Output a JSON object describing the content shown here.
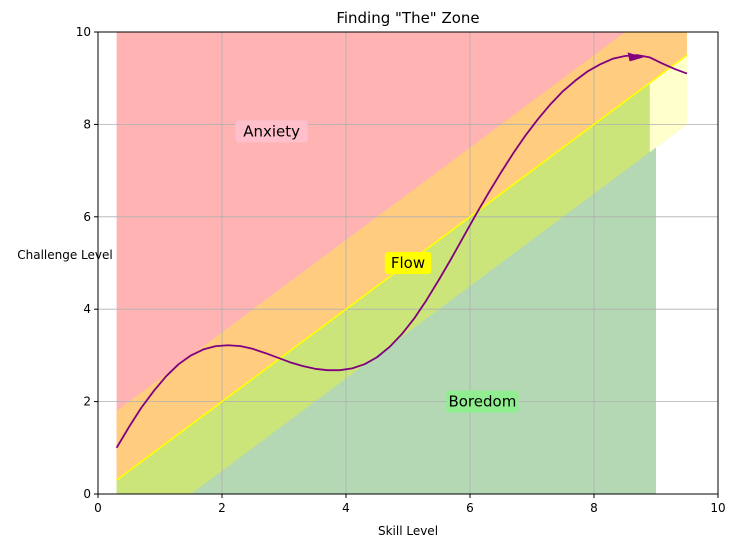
{
  "chart_data": {
    "type": "area",
    "title": "Finding \"The\" Zone",
    "xlabel": "Skill Level",
    "ylabel": "Challenge Level",
    "xlim": [
      0,
      10
    ],
    "ylim": [
      0,
      10
    ],
    "xticks": [
      0,
      2,
      4,
      6,
      8,
      10
    ],
    "yticks": [
      0,
      2,
      4,
      6,
      8,
      10
    ],
    "grid": true,
    "regions": [
      {
        "label": "Anxiety",
        "color": "#ffb3b3",
        "x_range": [
          0.3,
          9.0
        ],
        "y_range": [
          0,
          10
        ]
      },
      {
        "label": "Boredom",
        "color": "#b3d8b3",
        "x_range": [
          0.3,
          9.0
        ],
        "y_range": [
          0,
          10
        ]
      }
    ],
    "bands": [
      {
        "color": "#ffcc80",
        "lower": [
          [
            0.3,
            0.3
          ],
          [
            9.5,
            9.5
          ]
        ],
        "upper": [
          [
            0.3,
            1.8
          ],
          [
            9.5,
            11.0
          ]
        ]
      },
      {
        "color": "#cce57a",
        "lower": [
          [
            0.3,
            -1.2
          ],
          [
            9.5,
            8.0
          ]
        ],
        "upper": [
          [
            0.3,
            0.3
          ],
          [
            9.5,
            9.5
          ]
        ]
      },
      {
        "color": "#ffffcc",
        "lower": [
          [
            8.9,
            7.4
          ],
          [
            9.5,
            8.0
          ]
        ],
        "upper": [
          [
            8.9,
            8.9
          ],
          [
            9.5,
            9.5
          ]
        ]
      }
    ],
    "flow_line": {
      "color": "#ffff00",
      "points": [
        [
          0.3,
          0.3
        ],
        [
          9.5,
          9.5
        ]
      ]
    },
    "journey": {
      "color": "#800080",
      "points": [
        [
          0.3,
          1.0
        ],
        [
          0.5,
          1.45
        ],
        [
          0.7,
          1.87
        ],
        [
          0.9,
          2.23
        ],
        [
          1.1,
          2.55
        ],
        [
          1.3,
          2.81
        ],
        [
          1.5,
          3.0
        ],
        [
          1.7,
          3.13
        ],
        [
          1.9,
          3.2
        ],
        [
          2.1,
          3.22
        ],
        [
          2.3,
          3.2
        ],
        [
          2.5,
          3.14
        ],
        [
          2.7,
          3.05
        ],
        [
          2.9,
          2.95
        ],
        [
          3.1,
          2.85
        ],
        [
          3.3,
          2.77
        ],
        [
          3.5,
          2.71
        ],
        [
          3.7,
          2.68
        ],
        [
          3.9,
          2.68
        ],
        [
          4.1,
          2.72
        ],
        [
          4.3,
          2.81
        ],
        [
          4.5,
          2.96
        ],
        [
          4.7,
          3.18
        ],
        [
          4.9,
          3.46
        ],
        [
          5.1,
          3.8
        ],
        [
          5.3,
          4.2
        ],
        [
          5.5,
          4.64
        ],
        [
          5.7,
          5.1
        ],
        [
          5.9,
          5.58
        ],
        [
          6.1,
          6.06
        ],
        [
          6.3,
          6.52
        ],
        [
          6.5,
          6.96
        ],
        [
          6.7,
          7.38
        ],
        [
          6.9,
          7.77
        ],
        [
          7.1,
          8.12
        ],
        [
          7.3,
          8.44
        ],
        [
          7.5,
          8.72
        ],
        [
          7.7,
          8.95
        ],
        [
          7.9,
          9.15
        ],
        [
          8.1,
          9.3
        ],
        [
          8.3,
          9.42
        ],
        [
          8.5,
          9.48
        ],
        [
          8.7,
          9.5
        ],
        [
          8.9,
          9.45
        ],
        [
          9.1,
          9.32
        ],
        [
          9.3,
          9.2
        ],
        [
          9.5,
          9.1
        ]
      ],
      "arrow_at": [
        8.8,
        9.45
      ]
    },
    "annotations": [
      {
        "text": "Anxiety",
        "x": 2.8,
        "y": 7.85,
        "bg": "#ffc0cb"
      },
      {
        "text": "Flow",
        "x": 5.0,
        "y": 5.0,
        "bg": "#ffff00"
      },
      {
        "text": "Boredom",
        "x": 6.2,
        "y": 2.0,
        "bg": "#90ee90"
      }
    ]
  }
}
